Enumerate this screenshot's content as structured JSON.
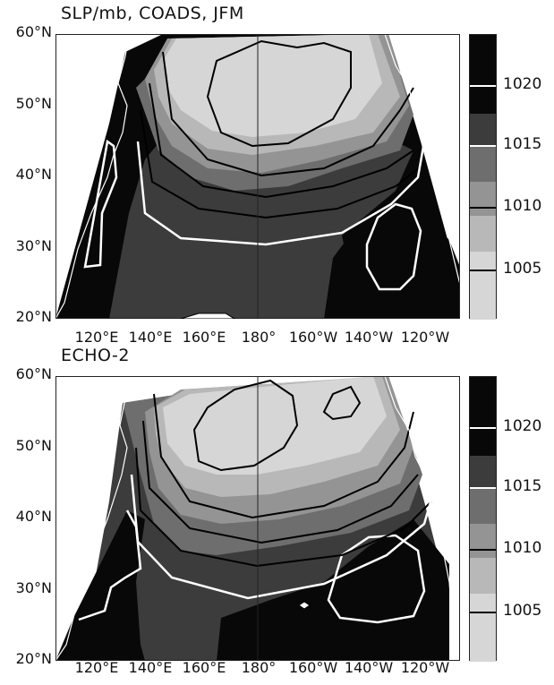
{
  "panels": [
    {
      "title": "SLP/mb, COADS, JFM",
      "lat_labels": [
        "60°N",
        "50°N",
        "40°N",
        "30°N",
        "20°N"
      ],
      "lon_labels": [
        "120°E",
        "140°E",
        "160°E",
        "180°",
        "160°W",
        "140°W",
        "120°W"
      ],
      "colorbar_labels": [
        "1020",
        "1015",
        "1010",
        "1005"
      ]
    },
    {
      "title": "ECHO-2",
      "lat_labels": [
        "60°N",
        "50°N",
        "40°N",
        "30°N",
        "20°N"
      ],
      "lon_labels": [
        "120°E",
        "140°E",
        "160°E",
        "180°",
        "160°W",
        "140°W",
        "120°W"
      ],
      "colorbar_labels": [
        "1020",
        "1015",
        "1010",
        "1005"
      ]
    }
  ],
  "colors": {
    "level_1": "#d6d6d6",
    "level_2": "#b8b8b8",
    "level_3": "#949494",
    "level_4": "#6e6e6e",
    "level_5": "#3c3c3c",
    "level_6": "#080808",
    "contour_dark": "#000000",
    "contour_light": "#ffffff",
    "coast": "#ffffff"
  }
}
